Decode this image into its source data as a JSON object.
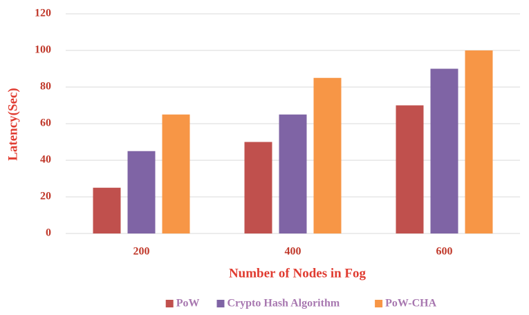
{
  "chart_data": {
    "type": "bar",
    "categories": [
      "200",
      "400",
      "600"
    ],
    "series": [
      {
        "name": "PoW",
        "color": "#c0504d",
        "values": [
          25,
          50,
          70
        ]
      },
      {
        "name": "Crypto Hash Algorithm",
        "color": "#7f64a5",
        "values": [
          45,
          65,
          90
        ]
      },
      {
        "name": "PoW-CHA",
        "color": "#f79646",
        "values": [
          65,
          85,
          100
        ]
      }
    ],
    "xlabel": "Number of Nodes in Fog",
    "ylabel": "Latency(Sec)",
    "ylim": [
      0,
      120
    ],
    "yticks": [
      0,
      20,
      40,
      60,
      80,
      100,
      120
    ],
    "grid": true,
    "legend": "bottom"
  }
}
